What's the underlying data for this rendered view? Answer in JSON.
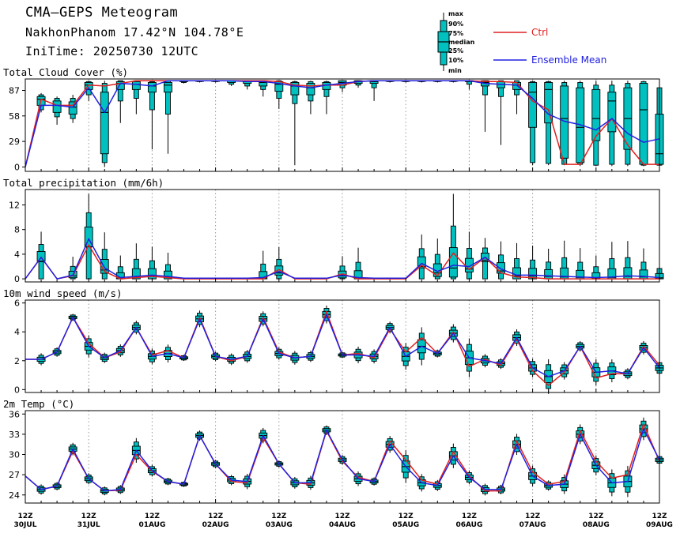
{
  "header": {
    "title": "CMA—GEPS Meteogram",
    "location": "NakhonPhanom 17.42°N 104.78°E",
    "init_time": "IniTime: 20250730 12UTC"
  },
  "box_key": {
    "labels": [
      "max",
      "90%",
      "75%",
      "median",
      "25%",
      "10%",
      "min"
    ]
  },
  "legend": {
    "ctrl": {
      "label": "Ctrl",
      "color": "#e02020"
    },
    "mean": {
      "label": "Ensemble Mean",
      "color": "#2020e0"
    }
  },
  "colors": {
    "box": "#00c0c0",
    "ctrl": "#e02020",
    "mean": "#2020e0"
  },
  "chart_data": {
    "type": "box-and-line meteogram",
    "x": {
      "unit": "forecast step (6-hourly from 2025-07-30 12Z)",
      "range": [
        0,
        40
      ],
      "ticks": [
        {
          "hour": "12Z",
          "date": "30JUL"
        },
        {
          "hour": "12Z",
          "date": "31JUL"
        },
        {
          "hour": "12Z",
          "date": "01AUG"
        },
        {
          "hour": "12Z",
          "date": "02AUG"
        },
        {
          "hour": "12Z",
          "date": "03AUG"
        },
        {
          "hour": "12Z",
          "date": "04AUG"
        },
        {
          "hour": "12Z",
          "date": "05AUG"
        },
        {
          "hour": "12Z",
          "date": "06AUG"
        },
        {
          "hour": "12Z",
          "date": "07AUG"
        },
        {
          "hour": "12Z",
          "date": "08AUG"
        },
        {
          "hour": "12Z",
          "date": "09AUG"
        }
      ]
    },
    "panels": [
      {
        "title": "Total Cloud Cover (%)",
        "ylim": [
          -5,
          100
        ],
        "yticks": [
          0,
          29,
          58,
          87
        ],
        "ctrl": [
          0,
          77,
          70,
          70,
          93,
          92,
          95,
          98,
          98,
          98,
          98,
          98,
          98,
          98,
          98,
          98,
          97,
          93,
          92,
          93,
          93,
          97,
          98,
          98,
          98,
          98,
          98,
          98,
          98,
          97,
          97,
          96,
          75,
          65,
          3,
          3,
          35,
          55,
          25,
          3,
          3
        ],
        "mean": [
          0,
          70,
          70,
          68,
          90,
          62,
          95,
          94,
          92,
          98,
          98,
          98,
          98,
          98,
          97,
          97,
          95,
          92,
          90,
          93,
          95,
          97,
          98,
          98,
          98,
          98,
          98,
          98,
          98,
          95,
          94,
          93,
          78,
          60,
          52,
          48,
          42,
          55,
          38,
          28,
          32
        ],
        "boxes": [
          null,
          [
            62,
            65,
            70,
            77,
            80,
            82,
            84
          ],
          [
            48,
            57,
            62,
            70,
            75,
            78,
            80
          ],
          [
            50,
            55,
            60,
            68,
            74,
            78,
            82
          ],
          [
            75,
            82,
            88,
            93,
            96,
            97,
            98
          ],
          [
            0,
            5,
            15,
            62,
            85,
            95,
            98
          ],
          [
            50,
            75,
            88,
            95,
            97,
            98,
            98
          ],
          [
            60,
            78,
            88,
            94,
            97,
            98,
            98
          ],
          [
            20,
            65,
            85,
            92,
            96,
            97,
            98
          ],
          [
            15,
            60,
            85,
            93,
            96,
            98,
            98
          ],
          [
            95,
            96,
            97,
            98,
            98,
            98,
            98
          ],
          [
            96,
            97,
            98,
            98,
            98,
            98,
            98
          ],
          [
            96,
            97,
            98,
            98,
            98,
            98,
            98
          ],
          [
            92,
            94,
            96,
            98,
            98,
            98,
            98
          ],
          [
            88,
            92,
            95,
            97,
            98,
            98,
            98
          ],
          [
            80,
            88,
            92,
            96,
            98,
            98,
            98
          ],
          [
            66,
            78,
            86,
            94,
            97,
            98,
            98
          ],
          [
            2,
            72,
            82,
            92,
            96,
            97,
            98
          ],
          [
            60,
            75,
            82,
            90,
            95,
            97,
            98
          ],
          [
            60,
            80,
            88,
            93,
            96,
            97,
            98
          ],
          [
            85,
            90,
            93,
            96,
            98,
            98,
            98
          ],
          [
            90,
            93,
            95,
            97,
            98,
            98,
            98
          ],
          [
            75,
            90,
            95,
            97,
            98,
            98,
            98
          ],
          [
            96,
            97,
            98,
            98,
            98,
            98,
            98
          ],
          [
            96,
            97,
            98,
            98,
            98,
            98,
            98
          ],
          [
            96,
            97,
            98,
            98,
            98,
            98,
            98
          ],
          [
            96,
            97,
            98,
            98,
            98,
            98,
            98
          ],
          [
            96,
            97,
            98,
            98,
            98,
            98,
            98
          ],
          [
            88,
            94,
            97,
            98,
            98,
            98,
            98
          ],
          [
            40,
            82,
            92,
            96,
            98,
            98,
            98
          ],
          [
            25,
            80,
            90,
            94,
            97,
            98,
            98
          ],
          [
            60,
            82,
            88,
            93,
            96,
            98,
            98
          ],
          [
            2,
            5,
            45,
            85,
            96,
            97,
            98
          ],
          [
            2,
            4,
            50,
            88,
            96,
            97,
            98
          ],
          [
            2,
            3,
            10,
            55,
            92,
            96,
            98
          ],
          [
            1,
            3,
            5,
            45,
            90,
            96,
            98
          ],
          [
            1,
            2,
            30,
            55,
            88,
            93,
            98
          ],
          [
            1,
            3,
            40,
            75,
            85,
            93,
            98
          ],
          [
            1,
            3,
            20,
            55,
            90,
            95,
            98
          ],
          [
            1,
            2,
            3,
            65,
            95,
            97,
            98
          ],
          [
            1,
            2,
            3,
            15,
            60,
            90,
            98
          ]
        ]
      },
      {
        "title": "Total precipitation (mm/6h)",
        "ylim": [
          -0.5,
          14.5
        ],
        "yticks": [
          0,
          4,
          8,
          12
        ],
        "ctrl": [
          0,
          3.5,
          0,
          0.5,
          5.5,
          1.2,
          0,
          0.2,
          0.4,
          0.2,
          0,
          0,
          0,
          0,
          0,
          0,
          1.5,
          0,
          0,
          0,
          0.8,
          0,
          0,
          0,
          0,
          2.2,
          0.5,
          4.2,
          1.5,
          3.5,
          1.0,
          0.3,
          0.2,
          0,
          0,
          0,
          0,
          0,
          0,
          0,
          0
        ],
        "mean": [
          0,
          3.5,
          0,
          0.6,
          6.5,
          1.8,
          0.2,
          0.4,
          0.6,
          0.4,
          0.1,
          0.1,
          0.1,
          0.1,
          0.1,
          0.2,
          1.2,
          0.1,
          0.1,
          0.1,
          0.6,
          0.2,
          0.1,
          0.1,
          0.1,
          2.5,
          1.2,
          2.2,
          2.0,
          3.5,
          1.6,
          0.6,
          0.6,
          0.5,
          0.4,
          0.3,
          0.2,
          0.3,
          0.5,
          0.4,
          0.2
        ]
      },
      {
        "title": "10m wind speed (m/s)",
        "ylim": [
          -0.2,
          6.2
        ],
        "yticks": [
          0,
          2,
          4,
          6
        ],
        "ctrl": [
          2.1,
          2.1,
          2.6,
          5.0,
          3.2,
          2.2,
          2.6,
          4.3,
          2.4,
          2.7,
          2.2,
          5.0,
          2.3,
          2.0,
          2.3,
          5.0,
          2.6,
          2.2,
          2.3,
          5.4,
          2.4,
          2.5,
          2.2,
          4.2,
          2.6,
          3.6,
          2.5,
          4.0,
          1.6,
          2.1,
          1.7,
          3.5,
          1.3,
          0.3,
          1.2,
          3.0,
          0.8,
          1.1,
          1.1,
          3.0,
          1.7
        ],
        "mean": [
          2.1,
          2.1,
          2.6,
          5.0,
          3.0,
          2.2,
          2.7,
          4.3,
          2.3,
          2.5,
          2.2,
          4.9,
          2.3,
          2.1,
          2.3,
          4.9,
          2.5,
          2.2,
          2.3,
          5.2,
          2.4,
          2.4,
          2.3,
          4.3,
          2.3,
          3.0,
          2.5,
          3.9,
          2.2,
          2.0,
          1.8,
          3.6,
          1.5,
          0.9,
          1.3,
          3.0,
          1.2,
          1.3,
          1.1,
          2.9,
          1.5
        ]
      },
      {
        "title": "2m Temp (°C)",
        "ylim": [
          22.8,
          36.5
        ],
        "yticks": [
          24,
          27,
          30,
          33,
          36
        ],
        "ctrl": [
          26.8,
          24.8,
          25.3,
          30.5,
          26.4,
          24.6,
          24.7,
          30.0,
          27.5,
          26.0,
          25.6,
          32.8,
          28.6,
          26.0,
          25.8,
          32.5,
          28.6,
          25.8,
          25.6,
          33.5,
          29.0,
          26.6,
          26.0,
          32.0,
          29.2,
          26.2,
          25.6,
          30.4,
          26.8,
          24.6,
          24.6,
          32.0,
          27.4,
          25.6,
          26.0,
          33.5,
          29.0,
          26.5,
          27.0,
          34.5,
          29.0
        ],
        "mean": [
          26.8,
          24.8,
          25.3,
          30.8,
          26.4,
          24.6,
          24.8,
          30.6,
          27.6,
          26.0,
          25.6,
          32.8,
          28.6,
          26.2,
          26.0,
          32.8,
          28.6,
          25.8,
          25.8,
          33.6,
          29.2,
          26.4,
          26.0,
          31.5,
          28.2,
          25.8,
          25.4,
          29.8,
          26.6,
          24.8,
          24.8,
          31.5,
          26.8,
          25.4,
          25.6,
          33.0,
          28.4,
          25.8,
          26.0,
          33.8,
          29.2
        ]
      }
    ]
  }
}
